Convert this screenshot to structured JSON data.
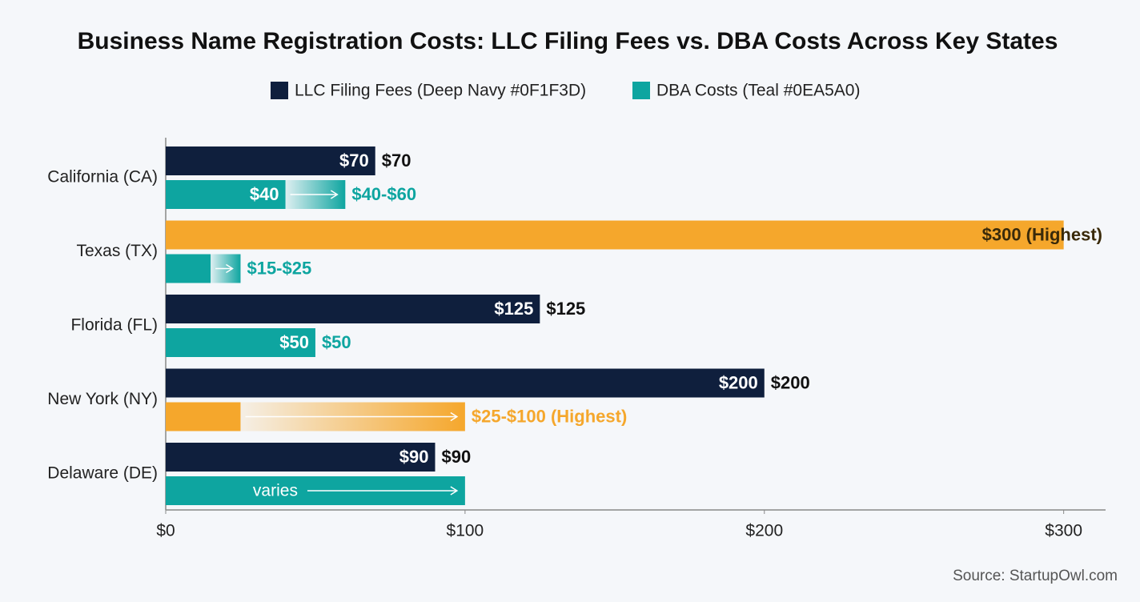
{
  "chart_data": {
    "type": "range-bar",
    "title": "Business Name Registration Costs: LLC Filing Fees vs. DBA Costs Across Key States",
    "source": "Source: StartupOwl.com",
    "categories": [
      "California (CA)",
      "Texas (TX)",
      "Florida (FL)",
      "New York (NY)",
      "Delaware (DE)"
    ],
    "series": [
      {
        "name": "LLC Filing Fees (Deep Navy #0F1F3D)",
        "color": "#0F1F3D",
        "colors": [
          "#0F1F3D",
          "#F5A72C",
          "#0F1F3D",
          "#0F1F3D",
          "#0F1F3D"
        ],
        "values": [
          70,
          300,
          125,
          200,
          90
        ],
        "value_labels": [
          "$70",
          "$300 (Highest)",
          "$125",
          "$200",
          "$90"
        ],
        "inner_labels": [
          "$70",
          null,
          "$125",
          "$200",
          "$90"
        ]
      },
      {
        "name": "DBA Costs (Teal #0EA5A0)",
        "color": "#0EA5A0",
        "colors": [
          "#0EA5A0",
          "#0EA5A0",
          "#0EA5A0",
          "#F5A72C",
          "#0EA5A0"
        ],
        "values": [
          40,
          15,
          50,
          25,
          null
        ],
        "highs": [
          60,
          25,
          50,
          100,
          100
        ],
        "value_labels": [
          "$40-$60",
          "$15-$25",
          "$50",
          "$25-$100 (Highest)",
          null
        ],
        "inner_labels": [
          "$40",
          null,
          "$50",
          null,
          "varies"
        ]
      }
    ],
    "xlim": [
      0,
      314
    ],
    "xticks": [
      {
        "value": 0,
        "label": "$0"
      },
      {
        "value": 100,
        "label": "$100"
      },
      {
        "value": 200,
        "label": "$200"
      },
      {
        "value": 300,
        "label": "$300"
      }
    ],
    "legend": "top"
  }
}
